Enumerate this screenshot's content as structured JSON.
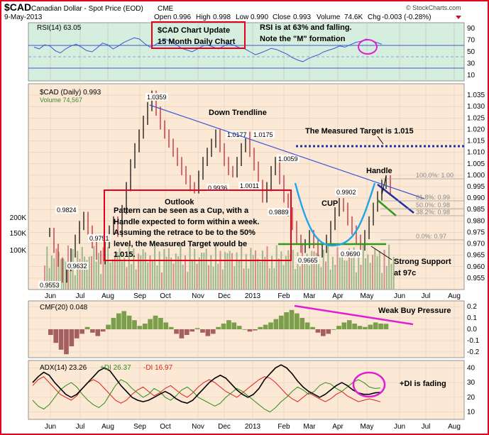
{
  "header": {
    "symbol": "$CAD",
    "name": "Canadian Dollar - Spot Price (EOD)",
    "exchange": "CME",
    "date": "9-May-2013",
    "copyright": "© StockCharts.com",
    "open_label": "Open",
    "open": "0.996",
    "high_label": "High",
    "high": "0.998",
    "low_label": "Low",
    "low": "0.990",
    "close_label": "Close",
    "close": "0.993",
    "volume_label": "Volume",
    "volume": "74.6K",
    "chg_label": "Chg",
    "chg": "-0.003 (-0.28%)"
  },
  "panels": {
    "rsi_label": "RSI(14) 63.05",
    "price_label": "$CAD (Daily) 0.993",
    "volume_label": "Volume 74,567",
    "cmf_label": "CMF(20) 0.048",
    "adx_label_adx": "ADX(14) 23.26",
    "adx_label_pdi": "+DI 26.37",
    "adx_label_mdi": "-DI 16.97"
  },
  "annotations": {
    "update_line1": "$CAD Chart Update",
    "update_line2": "15 Month Daily Chart",
    "rsi_line1": "RSI is at 63% and falling.",
    "rsi_line2": "Note the \"M\" formation",
    "down_trendline": "Down Trendline",
    "measured_target": "The Measured Target is 1.015",
    "handle": "Handle",
    "cup": "CUP",
    "outlook": "Outlook",
    "outlook_lines": [
      "Pattern can be seen as a Cup, with a",
      "Handle expected to form within a week.",
      "Assuming the retrace to be to the 50%",
      "level, the Measured Target would be",
      "1.015."
    ],
    "support_line1": "Strong Support",
    "support_line2": "at 97c",
    "weak_buy": "Weak Buy Pressure",
    "di_fading": "+DI is fading"
  },
  "colors": {
    "frame": "#e8001a",
    "panel_bg": "#fbe9d6",
    "rsi_bg": "#d6eedd",
    "rsi_line": "#3a55d8",
    "trend": "#3a55d8",
    "cup": "#24a6e6",
    "target": "#1f2fa8",
    "support": "#2e9a1a",
    "magenta": "#e01fd2",
    "volume": "#9cb88a",
    "cmf": "#7a9e4a",
    "adx": "#000000",
    "plus_di": "#2e8c1a",
    "minus_di": "#e0201a"
  },
  "chart_data": [
    {
      "type": "line",
      "title": "RSI(14) 63.05",
      "ylim": [
        0,
        100
      ],
      "y_ticks": [
        10,
        30,
        50,
        70,
        90
      ],
      "levels": [
        30,
        70
      ],
      "series": [
        {
          "values": [
            58,
            55,
            62,
            60,
            52,
            48,
            55,
            60,
            63,
            58,
            52,
            50,
            57,
            65,
            62,
            55,
            60,
            66,
            70,
            74,
            72,
            64,
            58,
            62,
            68,
            71,
            68,
            62,
            56,
            53,
            50,
            55,
            60,
            62,
            58,
            55,
            60,
            64,
            61,
            57,
            55,
            50,
            45,
            48,
            52,
            56,
            54,
            50,
            46,
            40,
            36,
            33,
            38,
            42,
            45,
            50,
            53,
            56,
            60,
            58,
            62,
            66,
            68,
            72,
            70,
            66,
            63
          ]
        }
      ]
    },
    {
      "type": "line",
      "title": "$CAD (Daily) 0.993",
      "ylim": [
        0.95,
        1.04
      ],
      "y_ticks": [
        0.955,
        0.96,
        0.965,
        0.97,
        0.975,
        0.98,
        0.985,
        0.99,
        0.995,
        1.0,
        1.005,
        1.01,
        1.015,
        1.02,
        1.025,
        1.03,
        1.035
      ],
      "x_tick_labels": [
        "Jun",
        "Jul",
        "Aug",
        "Sep",
        "Oct",
        "Nov",
        "Dec",
        "2013",
        "Feb",
        "Mar",
        "Apr",
        "May",
        "Jun",
        "Jul",
        "Aug"
      ],
      "price_labels": [
        "1.0359",
        "1.0177",
        "1.0175",
        "1.0059",
        "1.0011",
        "0.9936",
        "0.9902",
        "0.9889",
        "0.9824",
        "0.9751",
        "0.9690",
        "0.9665",
        "0.9632",
        "0.9553"
      ],
      "series": [
        {
          "values": [
            0.975,
            0.968,
            0.962,
            0.955,
            0.96,
            0.966,
            0.972,
            0.978,
            0.982,
            0.976,
            0.97,
            0.965,
            0.963,
            0.97,
            0.976,
            0.98,
            0.975,
            0.985,
            0.995,
            1.005,
            1.012,
            1.018,
            1.024,
            1.03,
            1.035,
            1.028,
            1.022,
            1.018,
            1.014,
            1.01,
            1.006,
            1.002,
            0.998,
            0.995,
            0.994,
            1.0,
            1.006,
            1.01,
            1.014,
            1.018,
            1.012,
            1.006,
            1.002,
            1.001,
            1.006,
            1.012,
            1.017,
            1.01,
            1.004,
            0.996,
            0.99,
            0.995,
            1.002,
            1.006,
            0.998,
            0.99,
            0.984,
            0.978,
            0.972,
            0.968,
            0.97,
            0.974,
            0.97,
            0.966,
            0.968,
            0.972,
            0.978,
            0.984,
            0.988,
            0.986,
            0.98,
            0.976,
            0.972,
            0.969,
            0.974,
            0.98,
            0.986,
            0.991,
            0.996,
            0.998,
            0.993
          ]
        }
      ],
      "volume": {
        "y_ticks": [
          "100K",
          "150K",
          "200K"
        ]
      },
      "fib_levels": [
        "100.0%: 1.00",
        "61.8%: 0.99",
        "50.0%: 0.98",
        "38.2%: 0.98",
        "0.0%: 0.97"
      ],
      "measured_target": 1.015,
      "support_level": 0.97
    },
    {
      "type": "bar",
      "title": "CMF(20) 0.048",
      "ylim": [
        -0.25,
        0.25
      ],
      "y_ticks": [
        -0.2,
        -0.1,
        0.0,
        0.1,
        0.2
      ],
      "series": [
        {
          "values": [
            -0.05,
            -0.12,
            -0.18,
            -0.22,
            -0.15,
            -0.08,
            -0.04,
            0.02,
            -0.03,
            -0.06,
            -0.02,
            0.04,
            0.1,
            0.14,
            0.16,
            0.12,
            0.08,
            0.03,
            0.05,
            0.09,
            0.12,
            0.1,
            0.06,
            0.02,
            -0.04,
            -0.08,
            -0.05,
            -0.02,
            0.01,
            -0.03,
            -0.06,
            -0.04,
            0.02,
            0.05,
            0.08,
            0.06,
            0.03,
            0.0,
            -0.02,
            -0.01,
            0.02,
            0.04,
            0.06,
            0.09,
            0.12,
            0.15,
            0.17,
            0.14,
            0.1,
            0.06,
            0.02,
            -0.03,
            -0.06,
            -0.04,
            0.0,
            0.03,
            0.06,
            0.08,
            0.05,
            0.03,
            0.02,
            0.04,
            0.06,
            0.05,
            0.048
          ]
        }
      ]
    },
    {
      "type": "line",
      "title": "ADX(14) 23.26",
      "ylim": [
        5,
        45
      ],
      "y_ticks": [
        10,
        20,
        30,
        40
      ],
      "series": [
        {
          "name": "ADX(14) 23.26",
          "values": [
            30,
            34,
            37,
            35,
            30,
            26,
            22,
            20,
            22,
            26,
            30,
            34,
            38,
            40,
            38,
            33,
            28,
            24,
            20,
            18,
            17,
            18,
            20,
            22,
            24,
            22,
            19,
            17,
            16,
            18,
            22,
            26,
            30,
            33,
            35,
            33,
            29,
            25,
            22,
            20,
            22,
            26,
            32,
            36,
            40,
            42,
            40,
            36,
            31,
            27,
            24,
            22,
            20,
            22,
            25,
            28,
            30,
            28,
            25,
            23,
            22,
            22,
            23,
            23.26
          ]
        },
        {
          "name": "+DI 26.37",
          "values": [
            18,
            14,
            12,
            15,
            20,
            25,
            28,
            30,
            27,
            22,
            18,
            15,
            13,
            16,
            22,
            28,
            32,
            30,
            26,
            23,
            20,
            22,
            26,
            24,
            20,
            18,
            21,
            25,
            27,
            24,
            20,
            18,
            16,
            14,
            16,
            20,
            23,
            26,
            24,
            21,
            18,
            15,
            12,
            10,
            13,
            17,
            20,
            24,
            27,
            25,
            22,
            24,
            28,
            30,
            29,
            26,
            24,
            27,
            30,
            32,
            30,
            27,
            26,
            26.37
          ]
        },
        {
          "name": "-DI 16.97",
          "values": [
            28,
            32,
            34,
            30,
            26,
            22,
            20,
            18,
            21,
            26,
            30,
            32,
            30,
            26,
            22,
            18,
            16,
            18,
            22,
            25,
            27,
            24,
            21,
            23,
            26,
            28,
            25,
            22,
            20,
            23,
            27,
            30,
            32,
            30,
            27,
            24,
            22,
            20,
            23,
            26,
            29,
            32,
            34,
            33,
            30,
            26,
            22,
            19,
            17,
            20,
            23,
            21,
            19,
            17,
            19,
            22,
            24,
            21,
            19,
            17,
            18,
            19,
            18,
            16.97
          ]
        }
      ],
      "x_tick_labels": [
        "Jun",
        "Jul",
        "Aug",
        "Sep",
        "Oct",
        "Nov",
        "Dec",
        "2013",
        "Feb",
        "Mar",
        "Apr",
        "May",
        "Jun",
        "Jul",
        "Aug"
      ]
    }
  ]
}
